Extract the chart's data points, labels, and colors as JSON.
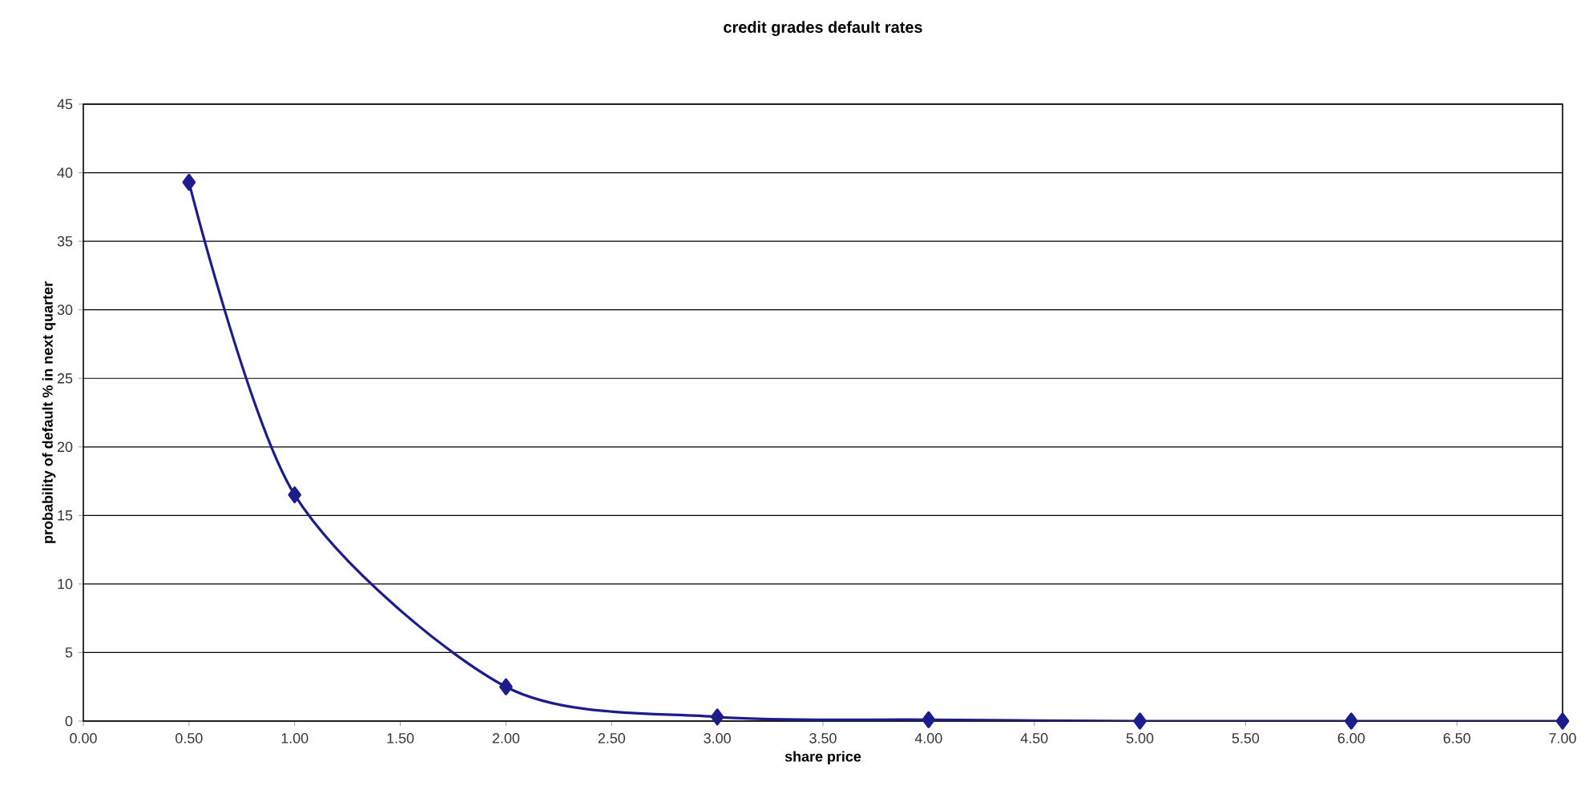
{
  "chart_data": {
    "type": "line",
    "title": "credit grades default rates",
    "xlabel": "share price",
    "ylabel": "probability of default % in next quarter",
    "x": [
      0.5,
      1.0,
      2.0,
      3.0,
      4.0,
      5.0,
      6.0,
      7.0
    ],
    "series": [
      {
        "color": "#1c1c8c",
        "values": [
          39.3,
          16.5,
          2.5,
          0.3,
          0.1,
          0,
          0,
          0
        ]
      }
    ],
    "xlim": [
      0,
      7
    ],
    "xticks": [
      {
        "value": 0,
        "label": "0.00"
      },
      {
        "value": 0.5,
        "label": "0.50"
      },
      {
        "value": 1,
        "label": "1.00"
      },
      {
        "value": 1.5,
        "label": "1.50"
      },
      {
        "value": 2,
        "label": "2.00"
      },
      {
        "value": 2.5,
        "label": "2.50"
      },
      {
        "value": 3,
        "label": "3.00"
      },
      {
        "value": 3.5,
        "label": "3.50"
      },
      {
        "value": 4,
        "label": "4.00"
      },
      {
        "value": 4.5,
        "label": "4.50"
      },
      {
        "value": 5,
        "label": "5.00"
      },
      {
        "value": 5.5,
        "label": "5.50"
      },
      {
        "value": 6,
        "label": "6.00"
      },
      {
        "value": 6.5,
        "label": "6.50"
      },
      {
        "value": 7,
        "label": "7.00"
      }
    ],
    "ylim": [
      0,
      45
    ],
    "yticks": [
      0,
      5,
      10,
      15,
      20,
      25,
      30,
      35,
      40,
      45
    ],
    "grid": "y",
    "marker": "diamond",
    "line_style": "solid"
  }
}
